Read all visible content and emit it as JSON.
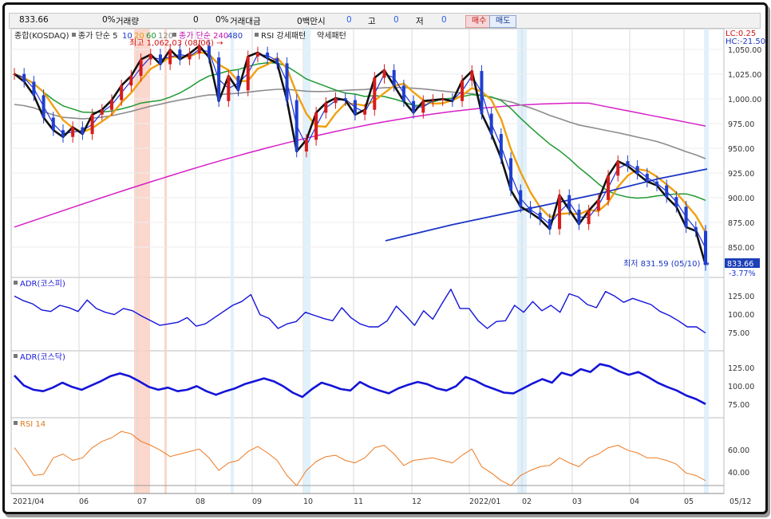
{
  "toolbar": {
    "index_value": "833.66",
    "volume_pct": "0%",
    "volume_label": "거래량",
    "volume_value": "0",
    "amount_pct": "0%",
    "amount_label": "거래대금",
    "amount_unit": "0백만시",
    "open_value": "0",
    "high_label": "고",
    "high_value": "0",
    "low_label": "저",
    "low_value": "0",
    "buy_label": "매수",
    "sell_label": "매도"
  },
  "price_panel": {
    "legend": {
      "index_name": "종합(KOSDAQ)",
      "ma_label": "종가 단순 5",
      "ma_periods": [
        "10",
        "20",
        "60",
        "120"
      ],
      "ma2_label": "종가 단순 240",
      "ma2_period": "480",
      "rsi_pattern": "RSI 강세패턴",
      "rsi_weak": "약세패턴"
    },
    "high_annotation": "최고 1,062.03 (08/06) →",
    "low_annotation": "최저 831.59 (05/10) →",
    "lc_label": "LC:0.25",
    "hc_label": "HC:-21.50",
    "last_price_label": "833.66",
    "change_label": "-3.77%",
    "y_ticks": [
      "1,050.00",
      "1,025.00",
      "1,000.00",
      "975.00",
      "950.00",
      "925.00",
      "900.00",
      "875.00",
      "850.00"
    ]
  },
  "adr_kospi_panel": {
    "title": "ADR(코스피)",
    "y_ticks": [
      "125.00",
      "100.00",
      "75.00"
    ]
  },
  "adr_kosdaq_panel": {
    "title": "ADR(코스닥)",
    "y_ticks": [
      "125.00",
      "100.00",
      "75.00"
    ]
  },
  "rsi_panel": {
    "title": "RSI 14",
    "y_ticks": [
      "60.00",
      "40.00"
    ]
  },
  "x_axis": [
    "2021/04",
    "06",
    "07",
    "08",
    "09",
    "10",
    "11",
    "12",
    "2022/01",
    "02",
    "03",
    "04",
    "05"
  ],
  "right_date_label": "05/12",
  "chart_data": [
    {
      "type": "line",
      "title": "",
      "ylim": [
        825,
        1075
      ],
      "series": [
        {
          "values": [
            1030,
            1022,
            1008,
            985,
            972,
            965,
            975,
            968,
            988,
            993,
            1003,
            1018,
            1028,
            1045,
            1050,
            1040,
            1055,
            1045,
            1051,
            1059,
            1047,
            1002,
            1028,
            1013,
            1048,
            1052,
            1046,
            1041,
            1003,
            950,
            962,
            990,
            1000,
            1005,
            1003,
            988,
            993,
            1026,
            1034,
            1018,
            1002,
            990,
            1002,
            1003,
            1004,
            1002,
            1023,
            1033,
            989,
            968,
            943,
            910,
            893,
            887,
            880,
            870,
            905,
            890,
            875,
            889,
            900,
            925,
            940,
            935,
            927,
            919,
            915,
            903,
            893,
            872,
            868,
            833
          ]
        }
      ]
    },
    {
      "type": "line",
      "title": "",
      "ylim": [
        55,
        140
      ],
      "series": [
        {
          "name": "ADR(코스피)",
          "values": [
            124,
            118,
            114,
            106,
            104,
            112,
            109,
            104,
            119,
            108,
            103,
            100,
            108,
            105,
            98,
            92,
            86,
            88,
            90,
            96,
            85,
            88,
            96,
            104,
            112,
            117,
            126,
            100,
            95,
            82,
            88,
            91,
            103,
            99,
            95,
            92,
            109,
            96,
            88,
            84,
            84,
            92,
            111,
            99,
            86,
            105,
            94,
            114,
            133,
            108,
            108,
            92,
            82,
            91,
            92,
            112,
            103,
            117,
            105,
            112,
            103,
            127,
            123,
            113,
            109,
            130,
            124,
            116,
            121,
            117,
            113,
            104,
            99,
            92,
            84,
            84,
            76
          ]
        }
      ]
    },
    {
      "type": "line",
      "title": "",
      "ylim": [
        55,
        140
      ],
      "series": [
        {
          "name": "ADR(코스닥)",
          "values": [
            112,
            98,
            92,
            90,
            95,
            102,
            96,
            92,
            98,
            104,
            111,
            115,
            111,
            104,
            96,
            92,
            95,
            90,
            92,
            97,
            90,
            85,
            90,
            94,
            100,
            104,
            108,
            104,
            97,
            88,
            82,
            93,
            102,
            98,
            93,
            91,
            103,
            96,
            91,
            87,
            94,
            99,
            103,
            100,
            94,
            91,
            97,
            110,
            105,
            98,
            93,
            88,
            87,
            94,
            101,
            107,
            102,
            116,
            112,
            121,
            117,
            128,
            125,
            118,
            113,
            117,
            110,
            102,
            96,
            91,
            84,
            79,
            72
          ]
        }
      ]
    },
    {
      "type": "line",
      "title": "",
      "ylim": [
        25,
        80
      ],
      "series": [
        {
          "name": "RSI 14",
          "values": [
            60,
            50,
            38,
            39,
            52,
            55,
            50,
            52,
            60,
            65,
            68,
            73,
            71,
            65,
            62,
            58,
            53,
            55,
            57,
            59,
            52,
            42,
            48,
            50,
            57,
            61,
            56,
            50,
            38,
            30,
            42,
            49,
            53,
            54,
            50,
            48,
            52,
            60,
            62,
            55,
            46,
            50,
            51,
            52,
            50,
            48,
            54,
            59,
            45,
            40,
            34,
            30,
            38,
            42,
            45,
            46,
            52,
            48,
            45,
            52,
            55,
            60,
            62,
            58,
            56,
            52,
            52,
            50,
            47,
            40,
            38,
            34
          ]
        }
      ]
    }
  ]
}
